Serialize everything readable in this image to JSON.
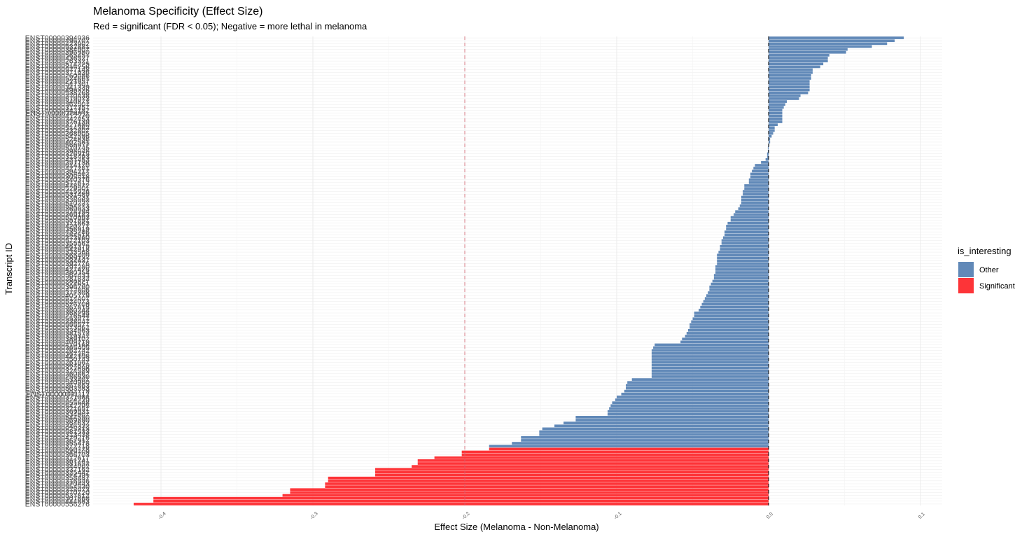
{
  "chart_data": {
    "type": "bar",
    "orientation": "horizontal",
    "title": "Melanoma Specificity (Effect Size)",
    "subtitle": "Red = significant (FDR < 0.05); Negative = more lethal in melanoma",
    "xlabel": "Effect Size (Melanoma - Non-Melanoma)",
    "ylabel": "Transcript ID",
    "xlim": [
      -0.418,
      0.118
    ],
    "x_ticks": [
      -0.4,
      -0.3,
      -0.2,
      -0.1,
      0.0,
      0.1
    ],
    "x_tick_labels": [
      "-0.4",
      "-0.3",
      "-0.2",
      "-0.1",
      "0.0",
      "0.1"
    ],
    "reference_lines": [
      {
        "x": -0.2,
        "style": "dashed",
        "color": "#D6606D"
      },
      {
        "x": 0.0,
        "style": "dashed",
        "color": "#000000"
      }
    ],
    "grid": true,
    "legend": {
      "title": "is_interesting",
      "position": "right",
      "entries": [
        {
          "label": "Other",
          "color": "#6189B8"
        },
        {
          "label": "Significant",
          "color": "#FD3438"
        }
      ]
    },
    "colors": {
      "Other": "#6189B8",
      "Significant": "#FD3438"
    },
    "bars": [
      {
        "id": "ENST00000394936",
        "value": 0.089,
        "group": "Other"
      },
      {
        "id": "ENST00000496707",
        "value": 0.083,
        "group": "Other"
      },
      {
        "id": "ENST00000423902",
        "value": 0.078,
        "group": "Other"
      },
      {
        "id": "ENST00000532881",
        "value": 0.068,
        "group": "Other"
      },
      {
        "id": "ENST00000384907",
        "value": 0.052,
        "group": "Other"
      },
      {
        "id": "ENST00000396980",
        "value": 0.051,
        "group": "Other"
      },
      {
        "id": "ENST00000565457",
        "value": 0.04,
        "group": "Other"
      },
      {
        "id": "ENST00000436527",
        "value": 0.039,
        "group": "Other"
      },
      {
        "id": "ENST00000263321",
        "value": 0.039,
        "group": "Other"
      },
      {
        "id": "ENST00000514225",
        "value": 0.036,
        "group": "Other"
      },
      {
        "id": "ENST00000316256",
        "value": 0.034,
        "group": "Other"
      },
      {
        "id": "ENST00000577148",
        "value": 0.029,
        "group": "Other"
      },
      {
        "id": "ENST00000371936",
        "value": 0.029,
        "group": "Other"
      },
      {
        "id": "ENST00000260086",
        "value": 0.028,
        "group": "Other"
      },
      {
        "id": "ENST00000524661",
        "value": 0.028,
        "group": "Other"
      },
      {
        "id": "ENST00000221957",
        "value": 0.027,
        "group": "Other"
      },
      {
        "id": "ENST00000547301",
        "value": 0.027,
        "group": "Other"
      },
      {
        "id": "ENST00000341339",
        "value": 0.027,
        "group": "Other"
      },
      {
        "id": "ENST00000496326",
        "value": 0.027,
        "group": "Other"
      },
      {
        "id": "ENST00000538268",
        "value": 0.026,
        "group": "Other"
      },
      {
        "id": "ENST00000370438",
        "value": 0.021,
        "group": "Other"
      },
      {
        "id": "ENST00000579073",
        "value": 0.02,
        "group": "Other"
      },
      {
        "id": "ENST00000340871",
        "value": 0.012,
        "group": "Other"
      },
      {
        "id": "ENST00000362507",
        "value": 0.011,
        "group": "Other"
      },
      {
        "id": "ENST00000317357",
        "value": 0.01,
        "group": "Other"
      },
      {
        "id": "ENST00000442182",
        "value": 0.009,
        "group": "Other"
      },
      {
        "id": "ENST00000384911",
        "value": 0.009,
        "group": "Other"
      },
      {
        "id": "ENST00000412270",
        "value": 0.009,
        "group": "Other"
      },
      {
        "id": "ENST00000342453",
        "value": 0.009,
        "group": "Other"
      },
      {
        "id": "ENST00000376139",
        "value": 0.009,
        "group": "Other"
      },
      {
        "id": "ENST00000327880",
        "value": 0.006,
        "group": "Other"
      },
      {
        "id": "ENST00000514362",
        "value": 0.004,
        "group": "Other"
      },
      {
        "id": "ENST00000432807",
        "value": 0.004,
        "group": "Other"
      },
      {
        "id": "ENST00000368905",
        "value": 0.003,
        "group": "Other"
      },
      {
        "id": "ENST00000542596",
        "value": 0.002,
        "group": "Other"
      },
      {
        "id": "ENST00000524836",
        "value": 0.001,
        "group": "Other"
      },
      {
        "id": "ENST00000402581",
        "value": 0.001,
        "group": "Other"
      },
      {
        "id": "ENST00000566977",
        "value": 0.0005,
        "group": "Other"
      },
      {
        "id": "ENST00000510745",
        "value": -0.0005,
        "group": "Other"
      },
      {
        "id": "ENST00000398045",
        "value": -0.0005,
        "group": "Other"
      },
      {
        "id": "ENST00000326915",
        "value": -0.001,
        "group": "Other"
      },
      {
        "id": "ENST00000318493",
        "value": -0.001,
        "group": "Other"
      },
      {
        "id": "ENST00000431453",
        "value": -0.002,
        "group": "Other"
      },
      {
        "id": "ENST00000357138",
        "value": -0.005,
        "group": "Other"
      },
      {
        "id": "ENST00000614170",
        "value": -0.009,
        "group": "Other"
      },
      {
        "id": "ENST00000427281",
        "value": -0.01,
        "group": "Other"
      },
      {
        "id": "ENST00000394217",
        "value": -0.011,
        "group": "Other"
      },
      {
        "id": "ENST00000358402",
        "value": -0.012,
        "group": "Other"
      },
      {
        "id": "ENST00000305418",
        "value": -0.012,
        "group": "Other"
      },
      {
        "id": "ENST00000340376",
        "value": -0.013,
        "group": "Other"
      },
      {
        "id": "ENST00000517612",
        "value": -0.013,
        "group": "Other"
      },
      {
        "id": "ENST00000478572",
        "value": -0.016,
        "group": "Other"
      },
      {
        "id": "ENST00000529501",
        "value": -0.016,
        "group": "Other"
      },
      {
        "id": "ENST00000415926",
        "value": -0.017,
        "group": "Other"
      },
      {
        "id": "ENST00000531489",
        "value": -0.017,
        "group": "Other"
      },
      {
        "id": "ENST00000376231",
        "value": -0.018,
        "group": "Other"
      },
      {
        "id": "ENST00000336062",
        "value": -0.018,
        "group": "Other"
      },
      {
        "id": "ENST00000510227",
        "value": -0.018,
        "group": "Other"
      },
      {
        "id": "ENST00000554273",
        "value": -0.019,
        "group": "Other"
      },
      {
        "id": "ENST00000369033",
        "value": -0.02,
        "group": "Other"
      },
      {
        "id": "ENST00000528394",
        "value": -0.022,
        "group": "Other"
      },
      {
        "id": "ENST00000369183",
        "value": -0.023,
        "group": "Other"
      },
      {
        "id": "ENST00000510993",
        "value": -0.025,
        "group": "Other"
      },
      {
        "id": "ENST00000551891",
        "value": -0.025,
        "group": "Other"
      },
      {
        "id": "ENST00000371863",
        "value": -0.027,
        "group": "Other"
      },
      {
        "id": "ENST00000420271",
        "value": -0.028,
        "group": "Other"
      },
      {
        "id": "ENST00000356919",
        "value": -0.028,
        "group": "Other"
      },
      {
        "id": "ENST00000435286",
        "value": -0.029,
        "group": "Other"
      },
      {
        "id": "ENST00000454518",
        "value": -0.029,
        "group": "Other"
      },
      {
        "id": "ENST00000373860",
        "value": -0.03,
        "group": "Other"
      },
      {
        "id": "ENST00000572103",
        "value": -0.031,
        "group": "Other"
      },
      {
        "id": "ENST00000355562",
        "value": -0.031,
        "group": "Other"
      },
      {
        "id": "ENST00000461379",
        "value": -0.032,
        "group": "Other"
      },
      {
        "id": "ENST00000542918",
        "value": -0.032,
        "group": "Other"
      },
      {
        "id": "ENST00000333568",
        "value": -0.033,
        "group": "Other"
      },
      {
        "id": "ENST00000565409",
        "value": -0.034,
        "group": "Other"
      },
      {
        "id": "ENST00000389137",
        "value": -0.034,
        "group": "Other"
      },
      {
        "id": "ENST00000534637",
        "value": -0.034,
        "group": "Other"
      },
      {
        "id": "ENST00000392776",
        "value": -0.034,
        "group": "Other"
      },
      {
        "id": "ENST00000297280",
        "value": -0.035,
        "group": "Other"
      },
      {
        "id": "ENST00000427476",
        "value": -0.035,
        "group": "Other"
      },
      {
        "id": "ENST00000380354",
        "value": -0.035,
        "group": "Other"
      },
      {
        "id": "ENST00000564433",
        "value": -0.036,
        "group": "Other"
      },
      {
        "id": "ENST00000281832",
        "value": -0.036,
        "group": "Other"
      },
      {
        "id": "ENST00000286827",
        "value": -0.037,
        "group": "Other"
      },
      {
        "id": "ENST00000374651",
        "value": -0.038,
        "group": "Other"
      },
      {
        "id": "ENST00000396760",
        "value": -0.039,
        "group": "Other"
      },
      {
        "id": "ENST00000472806",
        "value": -0.039,
        "group": "Other"
      },
      {
        "id": "ENST00000377308",
        "value": -0.04,
        "group": "Other"
      },
      {
        "id": "ENST00000405779",
        "value": -0.041,
        "group": "Other"
      },
      {
        "id": "ENST00000514407",
        "value": -0.042,
        "group": "Other"
      },
      {
        "id": "ENST00000524073",
        "value": -0.043,
        "group": "Other"
      },
      {
        "id": "ENST00000576709",
        "value": -0.044,
        "group": "Other"
      },
      {
        "id": "ENST00000367818",
        "value": -0.045,
        "group": "Other"
      },
      {
        "id": "ENST00000360244",
        "value": -0.046,
        "group": "Other"
      },
      {
        "id": "ENST00000368298",
        "value": -0.049,
        "group": "Other"
      },
      {
        "id": "ENST00000216544",
        "value": -0.049,
        "group": "Other"
      },
      {
        "id": "ENST00000553071",
        "value": -0.05,
        "group": "Other"
      },
      {
        "id": "ENST00000338047",
        "value": -0.051,
        "group": "Other"
      },
      {
        "id": "ENST00000555577",
        "value": -0.052,
        "group": "Other"
      },
      {
        "id": "ENST00000373062",
        "value": -0.052,
        "group": "Other"
      },
      {
        "id": "ENST00000334963",
        "value": -0.053,
        "group": "Other"
      },
      {
        "id": "ENST00000381572",
        "value": -0.054,
        "group": "Other"
      },
      {
        "id": "ENST00000319347",
        "value": -0.055,
        "group": "Other"
      },
      {
        "id": "ENST00000389102",
        "value": -0.057,
        "group": "Other"
      },
      {
        "id": "ENST00000409219",
        "value": -0.058,
        "group": "Other"
      },
      {
        "id": "ENST00000410168",
        "value": -0.075,
        "group": "Other"
      },
      {
        "id": "ENST00000365405",
        "value": -0.076,
        "group": "Other"
      },
      {
        "id": "ENST00000262742",
        "value": -0.077,
        "group": "Other"
      },
      {
        "id": "ENST00000367362",
        "value": -0.077,
        "group": "Other"
      },
      {
        "id": "ENST00000442108",
        "value": -0.077,
        "group": "Other"
      },
      {
        "id": "ENST00000350743",
        "value": -0.077,
        "group": "Other"
      },
      {
        "id": "ENST00000261967",
        "value": -0.077,
        "group": "Other"
      },
      {
        "id": "ENST00000367879",
        "value": -0.077,
        "group": "Other"
      },
      {
        "id": "ENST00000372898",
        "value": -0.077,
        "group": "Other"
      },
      {
        "id": "ENST00000324589",
        "value": -0.077,
        "group": "Other"
      },
      {
        "id": "ENST00000360862",
        "value": -0.077,
        "group": "Other"
      },
      {
        "id": "ENST00000256630",
        "value": -0.077,
        "group": "Other"
      },
      {
        "id": "ENST00000533401",
        "value": -0.09,
        "group": "Other"
      },
      {
        "id": "ENST00000540960",
        "value": -0.093,
        "group": "Other"
      },
      {
        "id": "ENST00000367863",
        "value": -0.094,
        "group": "Other"
      },
      {
        "id": "ENST00000503283",
        "value": -0.094,
        "group": "Other"
      },
      {
        "id": "ENST00000382779",
        "value": -0.095,
        "group": "Other"
      },
      {
        "id": "ENST00000331112",
        "value": -0.097,
        "group": "Other"
      },
      {
        "id": "ENST00000371084",
        "value": -0.1,
        "group": "Other"
      },
      {
        "id": "ENST00000324229",
        "value": -0.101,
        "group": "Other"
      },
      {
        "id": "ENST00000555648",
        "value": -0.103,
        "group": "Other"
      },
      {
        "id": "ENST00000542295",
        "value": -0.104,
        "group": "Other"
      },
      {
        "id": "ENST00000321651",
        "value": -0.105,
        "group": "Other"
      },
      {
        "id": "ENST00000369931",
        "value": -0.106,
        "group": "Other"
      },
      {
        "id": "ENST00000334907",
        "value": -0.106,
        "group": "Other"
      },
      {
        "id": "ENST00000544590",
        "value": -0.127,
        "group": "Other"
      },
      {
        "id": "ENST00000569890",
        "value": -0.127,
        "group": "Other"
      },
      {
        "id": "ENST00000364632",
        "value": -0.135,
        "group": "Other"
      },
      {
        "id": "ENST00000346332",
        "value": -0.141,
        "group": "Other"
      },
      {
        "id": "ENST00000525313",
        "value": -0.149,
        "group": "Other"
      },
      {
        "id": "ENST00000581533",
        "value": -0.151,
        "group": "Other"
      },
      {
        "id": "ENST00000313438",
        "value": -0.151,
        "group": "Other"
      },
      {
        "id": "ENST00000479216",
        "value": -0.163,
        "group": "Other"
      },
      {
        "id": "ENST00000367917",
        "value": -0.163,
        "group": "Other"
      },
      {
        "id": "ENST00000355478",
        "value": -0.169,
        "group": "Other"
      },
      {
        "id": "ENST00000372718",
        "value": -0.184,
        "group": "Other"
      },
      {
        "id": "ENST00000560778",
        "value": -0.184,
        "group": "Significant"
      },
      {
        "id": "ENST00000549709",
        "value": -0.202,
        "group": "Significant"
      },
      {
        "id": "ENST00000366703",
        "value": -0.202,
        "group": "Significant"
      },
      {
        "id": "ENST00000312617",
        "value": -0.22,
        "group": "Significant"
      },
      {
        "id": "ENST00000361741",
        "value": -0.231,
        "group": "Significant"
      },
      {
        "id": "ENST00000381852",
        "value": -0.231,
        "group": "Significant"
      },
      {
        "id": "ENST00000344062",
        "value": -0.235,
        "group": "Significant"
      },
      {
        "id": "ENST00000337162",
        "value": -0.259,
        "group": "Significant"
      },
      {
        "id": "ENST00000325442",
        "value": -0.259,
        "group": "Significant"
      },
      {
        "id": "ENST00000374391",
        "value": -0.259,
        "group": "Significant"
      },
      {
        "id": "ENST00000358487",
        "value": -0.29,
        "group": "Significant"
      },
      {
        "id": "ENST00000316846",
        "value": -0.29,
        "group": "Significant"
      },
      {
        "id": "ENST00000370443",
        "value": -0.292,
        "group": "Significant"
      },
      {
        "id": "ENST00000554530",
        "value": -0.292,
        "group": "Significant"
      },
      {
        "id": "ENST00000378073",
        "value": -0.315,
        "group": "Significant"
      },
      {
        "id": "ENST00000370720",
        "value": -0.315,
        "group": "Significant"
      },
      {
        "id": "ENST00000537812",
        "value": -0.32,
        "group": "Significant"
      },
      {
        "id": "ENST00000307868",
        "value": -0.405,
        "group": "Significant"
      },
      {
        "id": "ENST00000444883",
        "value": -0.405,
        "group": "Significant"
      },
      {
        "id": "ENST00000556276",
        "value": -0.418,
        "group": "Significant"
      }
    ]
  }
}
